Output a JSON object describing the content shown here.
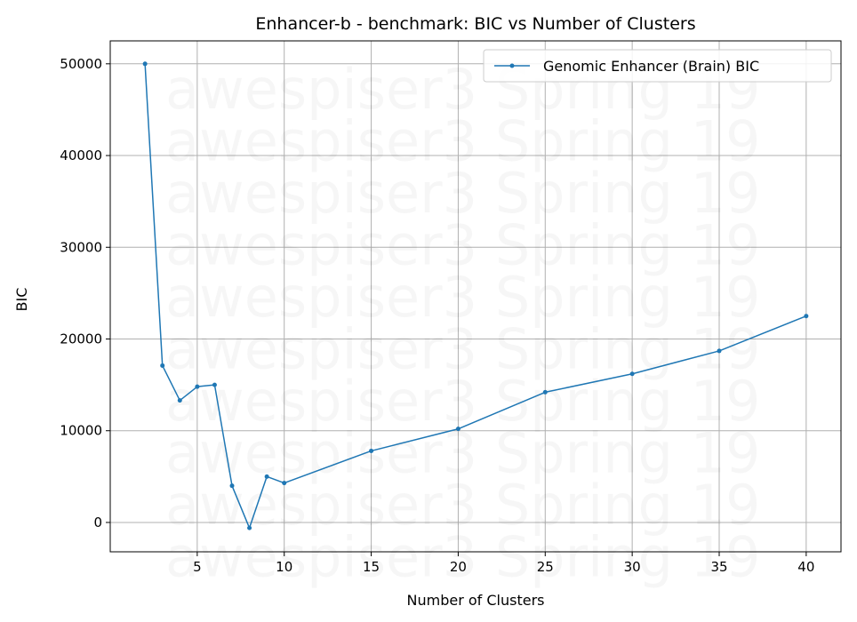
{
  "chart_data": {
    "type": "line",
    "title": "Enhancer-b - benchmark: BIC vs Number of Clusters",
    "xlabel": "Number of Clusters",
    "ylabel": "BIC",
    "xlim": [
      0,
      42
    ],
    "ylim": [
      -3200,
      52500
    ],
    "xticks": [
      5,
      10,
      15,
      20,
      25,
      30,
      35,
      40
    ],
    "yticks": [
      0,
      10000,
      20000,
      30000,
      40000,
      50000
    ],
    "grid": true,
    "legend_position": "top-right",
    "watermark": "awespiser3 Spring 19",
    "series": [
      {
        "name": "Genomic Enhancer (Brain) BIC",
        "color": "#1f77b4",
        "x": [
          2,
          3,
          4,
          5,
          6,
          7,
          8,
          9,
          10,
          15,
          20,
          25,
          30,
          35,
          40
        ],
        "y": [
          50000,
          17100,
          13300,
          14800,
          15000,
          4000,
          -600,
          5000,
          4300,
          7800,
          10200,
          14200,
          16200,
          18700,
          22500
        ]
      }
    ]
  }
}
